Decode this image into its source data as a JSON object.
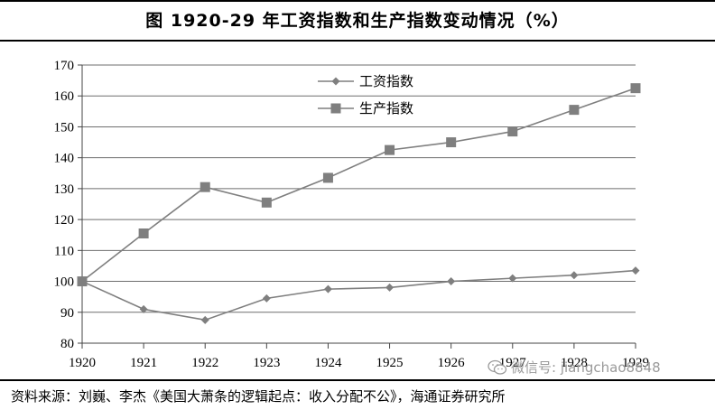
{
  "header": {
    "title": "图    1920-29 年工资指数和生产指数变动情况（%）"
  },
  "footer": {
    "source": "资料来源：刘巍、李杰《美国大萧条的逻辑起点：收入分配不公》，海通证券研究所"
  },
  "watermark": {
    "text": "微信号: jiangchao8848",
    "icon": "wechat-icon"
  },
  "chart_data": {
    "type": "line",
    "x": [
      1920,
      1921,
      1922,
      1923,
      1924,
      1925,
      1926,
      1927,
      1928,
      1929
    ],
    "xticks": [
      "1920",
      "1921",
      "1922",
      "1923",
      "1924",
      "1925",
      "1926",
      "1927",
      "1928",
      "1929"
    ],
    "ylim": [
      80,
      170
    ],
    "yticks": [
      80,
      90,
      100,
      110,
      120,
      130,
      140,
      150,
      160,
      170
    ],
    "grid": true,
    "legend_position": "top-center",
    "series": [
      {
        "name": "工资指数",
        "marker": "diamond",
        "color": "#7f7f7f",
        "values": [
          100,
          91,
          87.5,
          94.5,
          97.5,
          98,
          100,
          101,
          102,
          103.5
        ]
      },
      {
        "name": "生产指数",
        "marker": "square",
        "color": "#7f7f7f",
        "values": [
          100,
          115.5,
          130.5,
          125.5,
          133.5,
          142.5,
          145,
          148.5,
          155.5,
          162.5
        ]
      }
    ]
  }
}
